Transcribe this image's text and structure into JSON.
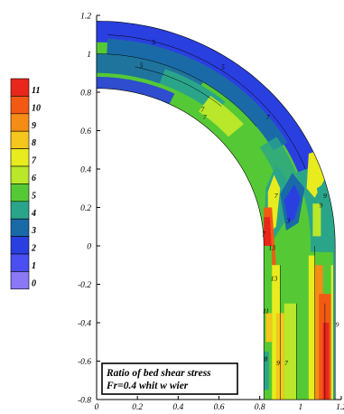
{
  "chart_data": {
    "type": "heatmap",
    "title": "",
    "xlabel": "",
    "ylabel": "",
    "xlim": [
      0,
      1.2
    ],
    "ylim": [
      -0.8,
      1.2
    ],
    "x_ticks": [
      "0",
      "0.2",
      "0.4",
      "0.6",
      "0.8",
      "1",
      "1.2"
    ],
    "x_tick_values": [
      0,
      0.2,
      0.4,
      0.6,
      0.8,
      1,
      1.2
    ],
    "y_ticks": [
      "1.2",
      "1",
      "0.8",
      "0.6",
      "0.4",
      "0.2",
      "0",
      "-0.2",
      "-0.4",
      "-0.6",
      "-0.8"
    ],
    "y_tick_values": [
      1.2,
      1,
      0.8,
      0.6,
      0.4,
      0.2,
      0,
      -0.2,
      -0.4,
      -0.6,
      -0.8
    ],
    "colorbar": {
      "levels": [
        "11",
        "10",
        "9",
        "8",
        "7",
        "6",
        "5",
        "4",
        "3",
        "2",
        "1",
        "0"
      ],
      "colors": [
        "#e8261c",
        "#f25a14",
        "#f48c16",
        "#f5c61c",
        "#e8ec1e",
        "#b9e72a",
        "#55c935",
        "#2aa58a",
        "#1a6aa8",
        "#2a3fe0",
        "#4a4ff2",
        "#8a78f4"
      ]
    },
    "geometry": {
      "bend_center": [
        0,
        0
      ],
      "inner_radius": 0.82,
      "outer_radius": 1.17,
      "straight_reach_y": [
        -0.8,
        0
      ]
    },
    "contour_labels": [
      {
        "text": "5",
        "x": 0.22,
        "y": 0.93
      },
      {
        "text": "5",
        "x": 0.28,
        "y": 1.05
      },
      {
        "text": "5",
        "x": 0.62,
        "y": 0.92
      },
      {
        "text": "7",
        "x": 0.52,
        "y": 0.7
      },
      {
        "text": "7",
        "x": 0.53,
        "y": 0.66
      },
      {
        "text": "7",
        "x": 0.84,
        "y": 0.66
      },
      {
        "text": "3",
        "x": 0.94,
        "y": 0.12
      },
      {
        "text": "13",
        "x": 0.86,
        "y": -0.02
      },
      {
        "text": "13",
        "x": 0.87,
        "y": -0.18
      },
      {
        "text": "7",
        "x": 0.88,
        "y": 0.25
      },
      {
        "text": "7",
        "x": 0.82,
        "y": 0.05
      },
      {
        "text": "9",
        "x": 1.12,
        "y": 0.25
      },
      {
        "text": "9",
        "x": 1.1,
        "y": 0.2
      },
      {
        "text": "11",
        "x": 0.83,
        "y": -0.35
      },
      {
        "text": "9",
        "x": 1.18,
        "y": -0.42
      },
      {
        "text": "8",
        "x": 0.83,
        "y": -0.6
      },
      {
        "text": "9",
        "x": 0.89,
        "y": -0.62
      },
      {
        "text": "7",
        "x": 0.93,
        "y": -0.62
      }
    ],
    "annotation": {
      "line1": "Ratio of bed shear stress",
      "line2": "Fr=0.4 whit w wier"
    }
  }
}
